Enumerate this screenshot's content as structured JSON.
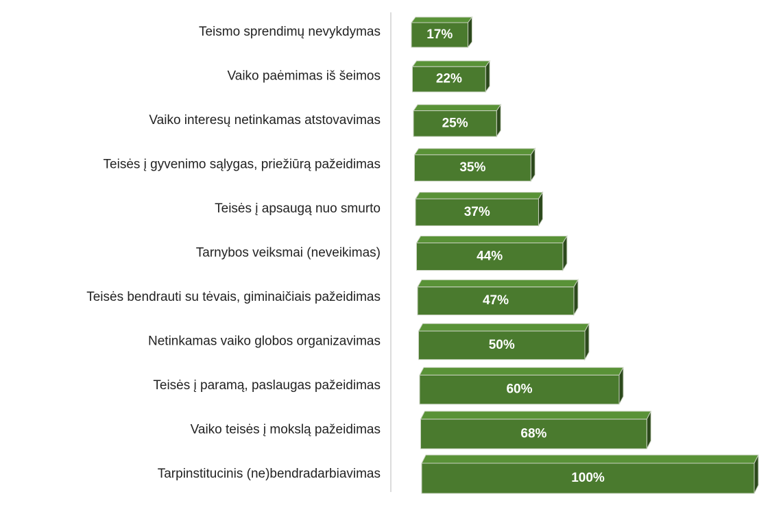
{
  "chart_data": {
    "type": "bar3d",
    "categories": [
      "Teismo sprendimų nevykdymas",
      "Vaiko paėmimas iš šeimos",
      "Vaiko interesų netinkamas atstovavimas",
      "Teisės į gyvenimo sąlygas, priežiūrą pažeidimas",
      "Teisės į apsaugą nuo smurto",
      "Tarnybos veiksmai (neveikimas)",
      "Teisės bendrauti su tėvais, giminaičiais pažeidimas",
      "Netinkamas vaiko globos organizavimas",
      "Teisės į paramą, paslaugas pažeidimas",
      "Vaiko teisės į mokslą pažeidimas",
      "Tarpinstitucinis (ne)bendradarbiavimas"
    ],
    "values": [
      17,
      22,
      25,
      35,
      37,
      44,
      47,
      50,
      60,
      68,
      100
    ],
    "value_labels": [
      "17%",
      "22%",
      "25%",
      "35%",
      "37%",
      "44%",
      "47%",
      "50%",
      "60%",
      "68%",
      "100%"
    ],
    "color": "#4a7a2e"
  }
}
